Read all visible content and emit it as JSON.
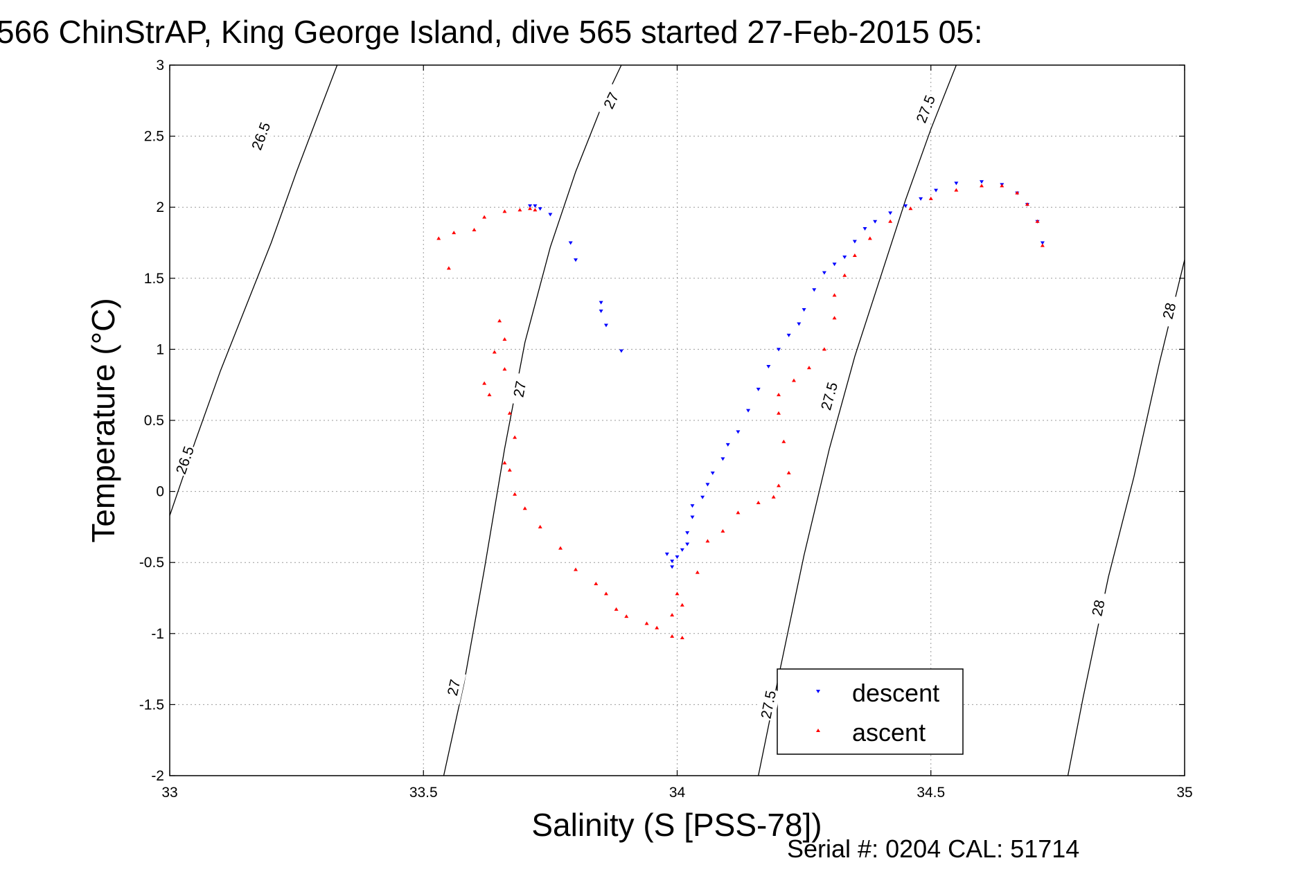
{
  "chart_data": {
    "type": "scatter",
    "title": "566 ChinStrAP, King George Island, dive 565 started 27-Feb-2015 05:",
    "xlabel": "Salinity (S [PSS-78])",
    "ylabel": "Temperature (°C)",
    "xlim": [
      33,
      35
    ],
    "ylim": [
      -2,
      3
    ],
    "x_ticks": [
      33,
      33.5,
      34,
      34.5,
      35
    ],
    "x_tick_labels": [
      "33",
      "33.5",
      "34",
      "34.5",
      "35"
    ],
    "y_ticks": [
      -2,
      -1.5,
      -1,
      -0.5,
      0,
      0.5,
      1,
      1.5,
      2,
      2.5,
      3
    ],
    "y_tick_labels": [
      "-2",
      "-1.5",
      "-1",
      "-0.5",
      "0",
      "0.5",
      "1",
      "1.5",
      "2",
      "2.5",
      "3"
    ],
    "grid": true,
    "legend_position": "bottom-right",
    "series": [
      {
        "name": "descent",
        "marker": "triangle-down",
        "color": "#0000ff",
        "points": [
          [
            33.71,
            2.01
          ],
          [
            33.72,
            2.01
          ],
          [
            33.73,
            1.99
          ],
          [
            33.75,
            1.95
          ],
          [
            33.79,
            1.75
          ],
          [
            33.8,
            1.63
          ],
          [
            33.85,
            1.33
          ],
          [
            33.85,
            1.27
          ],
          [
            33.86,
            1.17
          ],
          [
            33.89,
            0.99
          ],
          [
            33.98,
            -0.44
          ],
          [
            33.99,
            -0.49
          ],
          [
            33.99,
            -0.53
          ],
          [
            34.0,
            -0.46
          ],
          [
            34.01,
            -0.41
          ],
          [
            34.02,
            -0.37
          ],
          [
            34.02,
            -0.29
          ],
          [
            34.03,
            -0.18
          ],
          [
            34.03,
            -0.1
          ],
          [
            34.05,
            -0.04
          ],
          [
            34.06,
            0.05
          ],
          [
            34.07,
            0.13
          ],
          [
            34.09,
            0.23
          ],
          [
            34.1,
            0.33
          ],
          [
            34.12,
            0.42
          ],
          [
            34.14,
            0.57
          ],
          [
            34.16,
            0.72
          ],
          [
            34.18,
            0.88
          ],
          [
            34.2,
            1.0
          ],
          [
            34.22,
            1.1
          ],
          [
            34.24,
            1.18
          ],
          [
            34.25,
            1.28
          ],
          [
            34.27,
            1.42
          ],
          [
            34.29,
            1.54
          ],
          [
            34.31,
            1.6
          ],
          [
            34.33,
            1.65
          ],
          [
            34.35,
            1.76
          ],
          [
            34.37,
            1.85
          ],
          [
            34.39,
            1.9
          ],
          [
            34.42,
            1.96
          ],
          [
            34.45,
            2.01
          ],
          [
            34.48,
            2.06
          ],
          [
            34.51,
            2.12
          ],
          [
            34.55,
            2.17
          ],
          [
            34.6,
            2.18
          ],
          [
            34.64,
            2.16
          ],
          [
            34.67,
            2.1
          ],
          [
            34.69,
            2.02
          ],
          [
            34.71,
            1.9
          ],
          [
            34.72,
            1.75
          ]
        ]
      },
      {
        "name": "ascent",
        "marker": "triangle-up",
        "color": "#ff0000",
        "points": [
          [
            33.53,
            1.78
          ],
          [
            33.55,
            1.57
          ],
          [
            33.56,
            1.82
          ],
          [
            33.6,
            1.84
          ],
          [
            33.62,
            1.93
          ],
          [
            33.66,
            1.97
          ],
          [
            33.69,
            1.98
          ],
          [
            33.71,
            1.99
          ],
          [
            33.72,
            1.98
          ],
          [
            33.65,
            1.2
          ],
          [
            33.66,
            1.07
          ],
          [
            33.64,
            0.98
          ],
          [
            33.66,
            0.86
          ],
          [
            33.62,
            0.76
          ],
          [
            33.63,
            0.68
          ],
          [
            33.67,
            0.55
          ],
          [
            33.68,
            0.38
          ],
          [
            33.66,
            0.2
          ],
          [
            33.67,
            0.15
          ],
          [
            33.68,
            -0.02
          ],
          [
            33.7,
            -0.12
          ],
          [
            33.73,
            -0.25
          ],
          [
            33.77,
            -0.4
          ],
          [
            33.8,
            -0.55
          ],
          [
            33.84,
            -0.65
          ],
          [
            33.86,
            -0.72
          ],
          [
            33.88,
            -0.83
          ],
          [
            33.9,
            -0.88
          ],
          [
            33.94,
            -0.93
          ],
          [
            33.96,
            -0.96
          ],
          [
            33.99,
            -1.02
          ],
          [
            34.01,
            -1.03
          ],
          [
            33.99,
            -0.87
          ],
          [
            34.01,
            -0.8
          ],
          [
            34.0,
            -0.72
          ],
          [
            34.04,
            -0.57
          ],
          [
            34.06,
            -0.35
          ],
          [
            34.09,
            -0.28
          ],
          [
            34.12,
            -0.15
          ],
          [
            34.16,
            -0.08
          ],
          [
            34.19,
            -0.04
          ],
          [
            34.2,
            0.04
          ],
          [
            34.22,
            0.13
          ],
          [
            34.21,
            0.35
          ],
          [
            34.2,
            0.55
          ],
          [
            34.2,
            0.68
          ],
          [
            34.23,
            0.78
          ],
          [
            34.26,
            0.87
          ],
          [
            34.29,
            1.0
          ],
          [
            34.31,
            1.22
          ],
          [
            34.31,
            1.38
          ],
          [
            34.33,
            1.52
          ],
          [
            34.35,
            1.66
          ],
          [
            34.38,
            1.78
          ],
          [
            34.42,
            1.9
          ],
          [
            34.46,
            1.99
          ],
          [
            34.5,
            2.06
          ],
          [
            34.55,
            2.12
          ],
          [
            34.6,
            2.15
          ],
          [
            34.64,
            2.15
          ],
          [
            34.67,
            2.1
          ],
          [
            34.69,
            2.02
          ],
          [
            34.71,
            1.9
          ],
          [
            34.72,
            1.73
          ]
        ]
      }
    ],
    "contours": [
      {
        "label": "26.5",
        "points": [
          [
            33.0,
            -0.17
          ],
          [
            33.05,
            0.35
          ],
          [
            33.1,
            0.85
          ],
          [
            33.15,
            1.3
          ],
          [
            33.2,
            1.75
          ],
          [
            33.25,
            2.25
          ],
          [
            33.3,
            2.72
          ],
          [
            33.33,
            3.0
          ]
        ]
      },
      {
        "label": "27",
        "points": [
          [
            33.54,
            -2.0
          ],
          [
            33.58,
            -1.35
          ],
          [
            33.62,
            -0.55
          ],
          [
            33.66,
            0.3
          ],
          [
            33.7,
            1.05
          ],
          [
            33.75,
            1.72
          ],
          [
            33.8,
            2.25
          ],
          [
            33.85,
            2.7
          ],
          [
            33.89,
            3.0
          ]
        ]
      },
      {
        "label": "27.5",
        "points": [
          [
            34.16,
            -2.0
          ],
          [
            34.2,
            -1.3
          ],
          [
            34.25,
            -0.45
          ],
          [
            34.3,
            0.3
          ],
          [
            34.35,
            0.95
          ],
          [
            34.4,
            1.5
          ],
          [
            34.45,
            2.05
          ],
          [
            34.5,
            2.55
          ],
          [
            34.55,
            3.0
          ]
        ]
      },
      {
        "label": "28",
        "points": [
          [
            34.77,
            -2.0
          ],
          [
            34.8,
            -1.45
          ],
          [
            34.85,
            -0.6
          ],
          [
            34.9,
            0.1
          ],
          [
            34.95,
            0.9
          ],
          [
            35.0,
            1.63
          ]
        ]
      }
    ],
    "contour_labels": [
      {
        "text": "26.5",
        "at": [
          33.18,
          2.5
        ]
      },
      {
        "text": "26.5",
        "at": [
          33.03,
          0.22
        ]
      },
      {
        "text": "27",
        "at": [
          33.87,
          2.75
        ]
      },
      {
        "text": "27",
        "at": [
          33.69,
          0.72
        ]
      },
      {
        "text": "27",
        "at": [
          33.56,
          -1.38
        ]
      },
      {
        "text": "27.5",
        "at": [
          34.49,
          2.69
        ]
      },
      {
        "text": "27.5",
        "at": [
          34.3,
          0.67
        ]
      },
      {
        "text": "27.5",
        "at": [
          34.18,
          -1.5
        ]
      },
      {
        "text": "28",
        "at": [
          34.97,
          1.27
        ]
      },
      {
        "text": "28",
        "at": [
          34.83,
          -0.82
        ]
      }
    ]
  },
  "footer": {
    "serial": "Serial #: 0204  CAL: 51714"
  }
}
